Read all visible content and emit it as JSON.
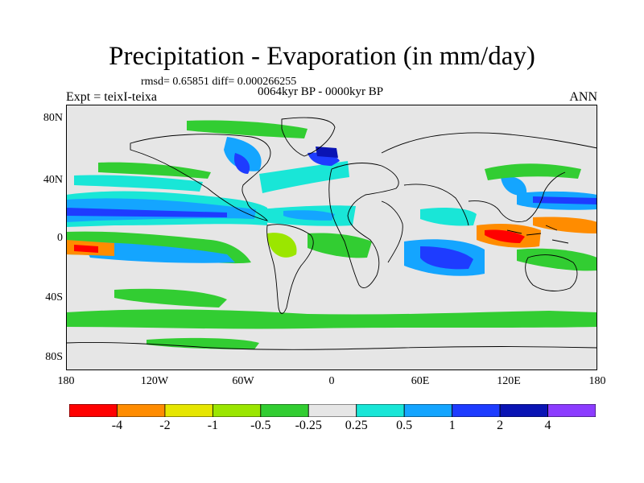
{
  "title": "Precipitation - Evaporation (in mm/day)",
  "stats": "rmsd= 0.65851 diff= 0.000266255",
  "period": "0064kyr BP - 0000kyr BP",
  "experiment": "Expt = teixI-teixa",
  "season": "ANN",
  "lat_ticks": [
    "80N",
    "40N",
    "0",
    "40S",
    "80S"
  ],
  "lon_ticks": [
    "180",
    "120W",
    "60W",
    "0",
    "60E",
    "120E",
    "180"
  ],
  "colorbar": {
    "labels": [
      "-4",
      "-2",
      "-1",
      "-0.5",
      "-0.25",
      "0.25",
      "0.5",
      "1",
      "2",
      "4"
    ],
    "colors": [
      "#ff0000",
      "#ff8c00",
      "#e6e600",
      "#9be600",
      "#32cd32",
      "#e6e6e6",
      "#19e6d7",
      "#14a5ff",
      "#1e3cff",
      "#0a14b4",
      "#8c3cff"
    ]
  },
  "colors": {
    "neutral": "#e6e6e6",
    "coast": "#000000"
  }
}
